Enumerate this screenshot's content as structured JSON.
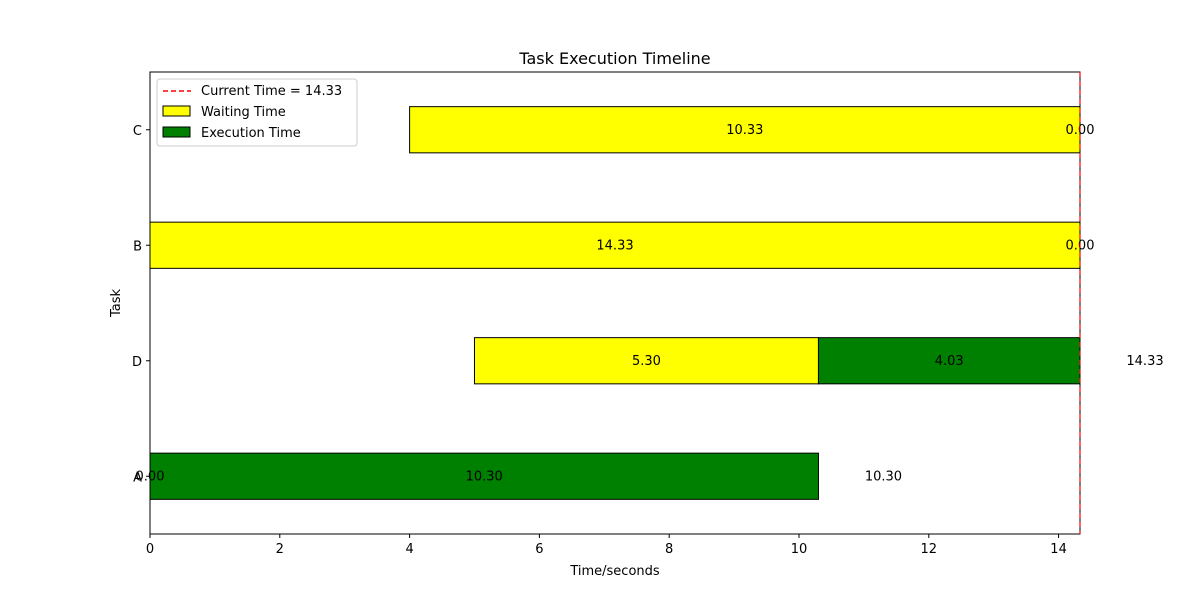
{
  "chart_data": {
    "type": "bar",
    "orientation": "horizontal-stacked",
    "title": "Task Execution Timeline",
    "xlabel": "Time/seconds",
    "ylabel": "Task",
    "xlim": [
      0,
      14.33
    ],
    "xticks": [
      0,
      2,
      4,
      6,
      8,
      10,
      12,
      14
    ],
    "categories": [
      "A",
      "D",
      "B",
      "C"
    ],
    "current_time": 14.33,
    "tasks": [
      {
        "task": "A",
        "start": 0.0,
        "waiting": 0.0,
        "execution": 10.3,
        "waiting_label": "0.00",
        "execution_label": "10.30",
        "end_label": "10.30"
      },
      {
        "task": "D",
        "start": 5.0,
        "waiting": 5.3,
        "execution": 4.03,
        "waiting_label": "5.30",
        "execution_label": "4.03",
        "end_label": "14.33"
      },
      {
        "task": "B",
        "start": 0.0,
        "waiting": 14.33,
        "execution": 0.0,
        "waiting_label": "14.33",
        "execution_label": "0.00",
        "end_label": ""
      },
      {
        "task": "C",
        "start": 4.0,
        "waiting": 10.33,
        "execution": 0.0,
        "waiting_label": "10.33",
        "execution_label": "0.00",
        "end_label": ""
      }
    ],
    "legend": {
      "placement": "top-left",
      "entries": [
        {
          "label": "Current Time = 14.33",
          "kind": "line",
          "color": "#ff0000",
          "dash": true
        },
        {
          "label": "Waiting Time",
          "kind": "patch",
          "color": "#ffff00"
        },
        {
          "label": "Execution Time",
          "kind": "patch",
          "color": "#008000"
        }
      ]
    },
    "colors": {
      "waiting": "#ffff00",
      "execution": "#008000",
      "current_line": "#ff0000",
      "edge": "#000000"
    }
  }
}
